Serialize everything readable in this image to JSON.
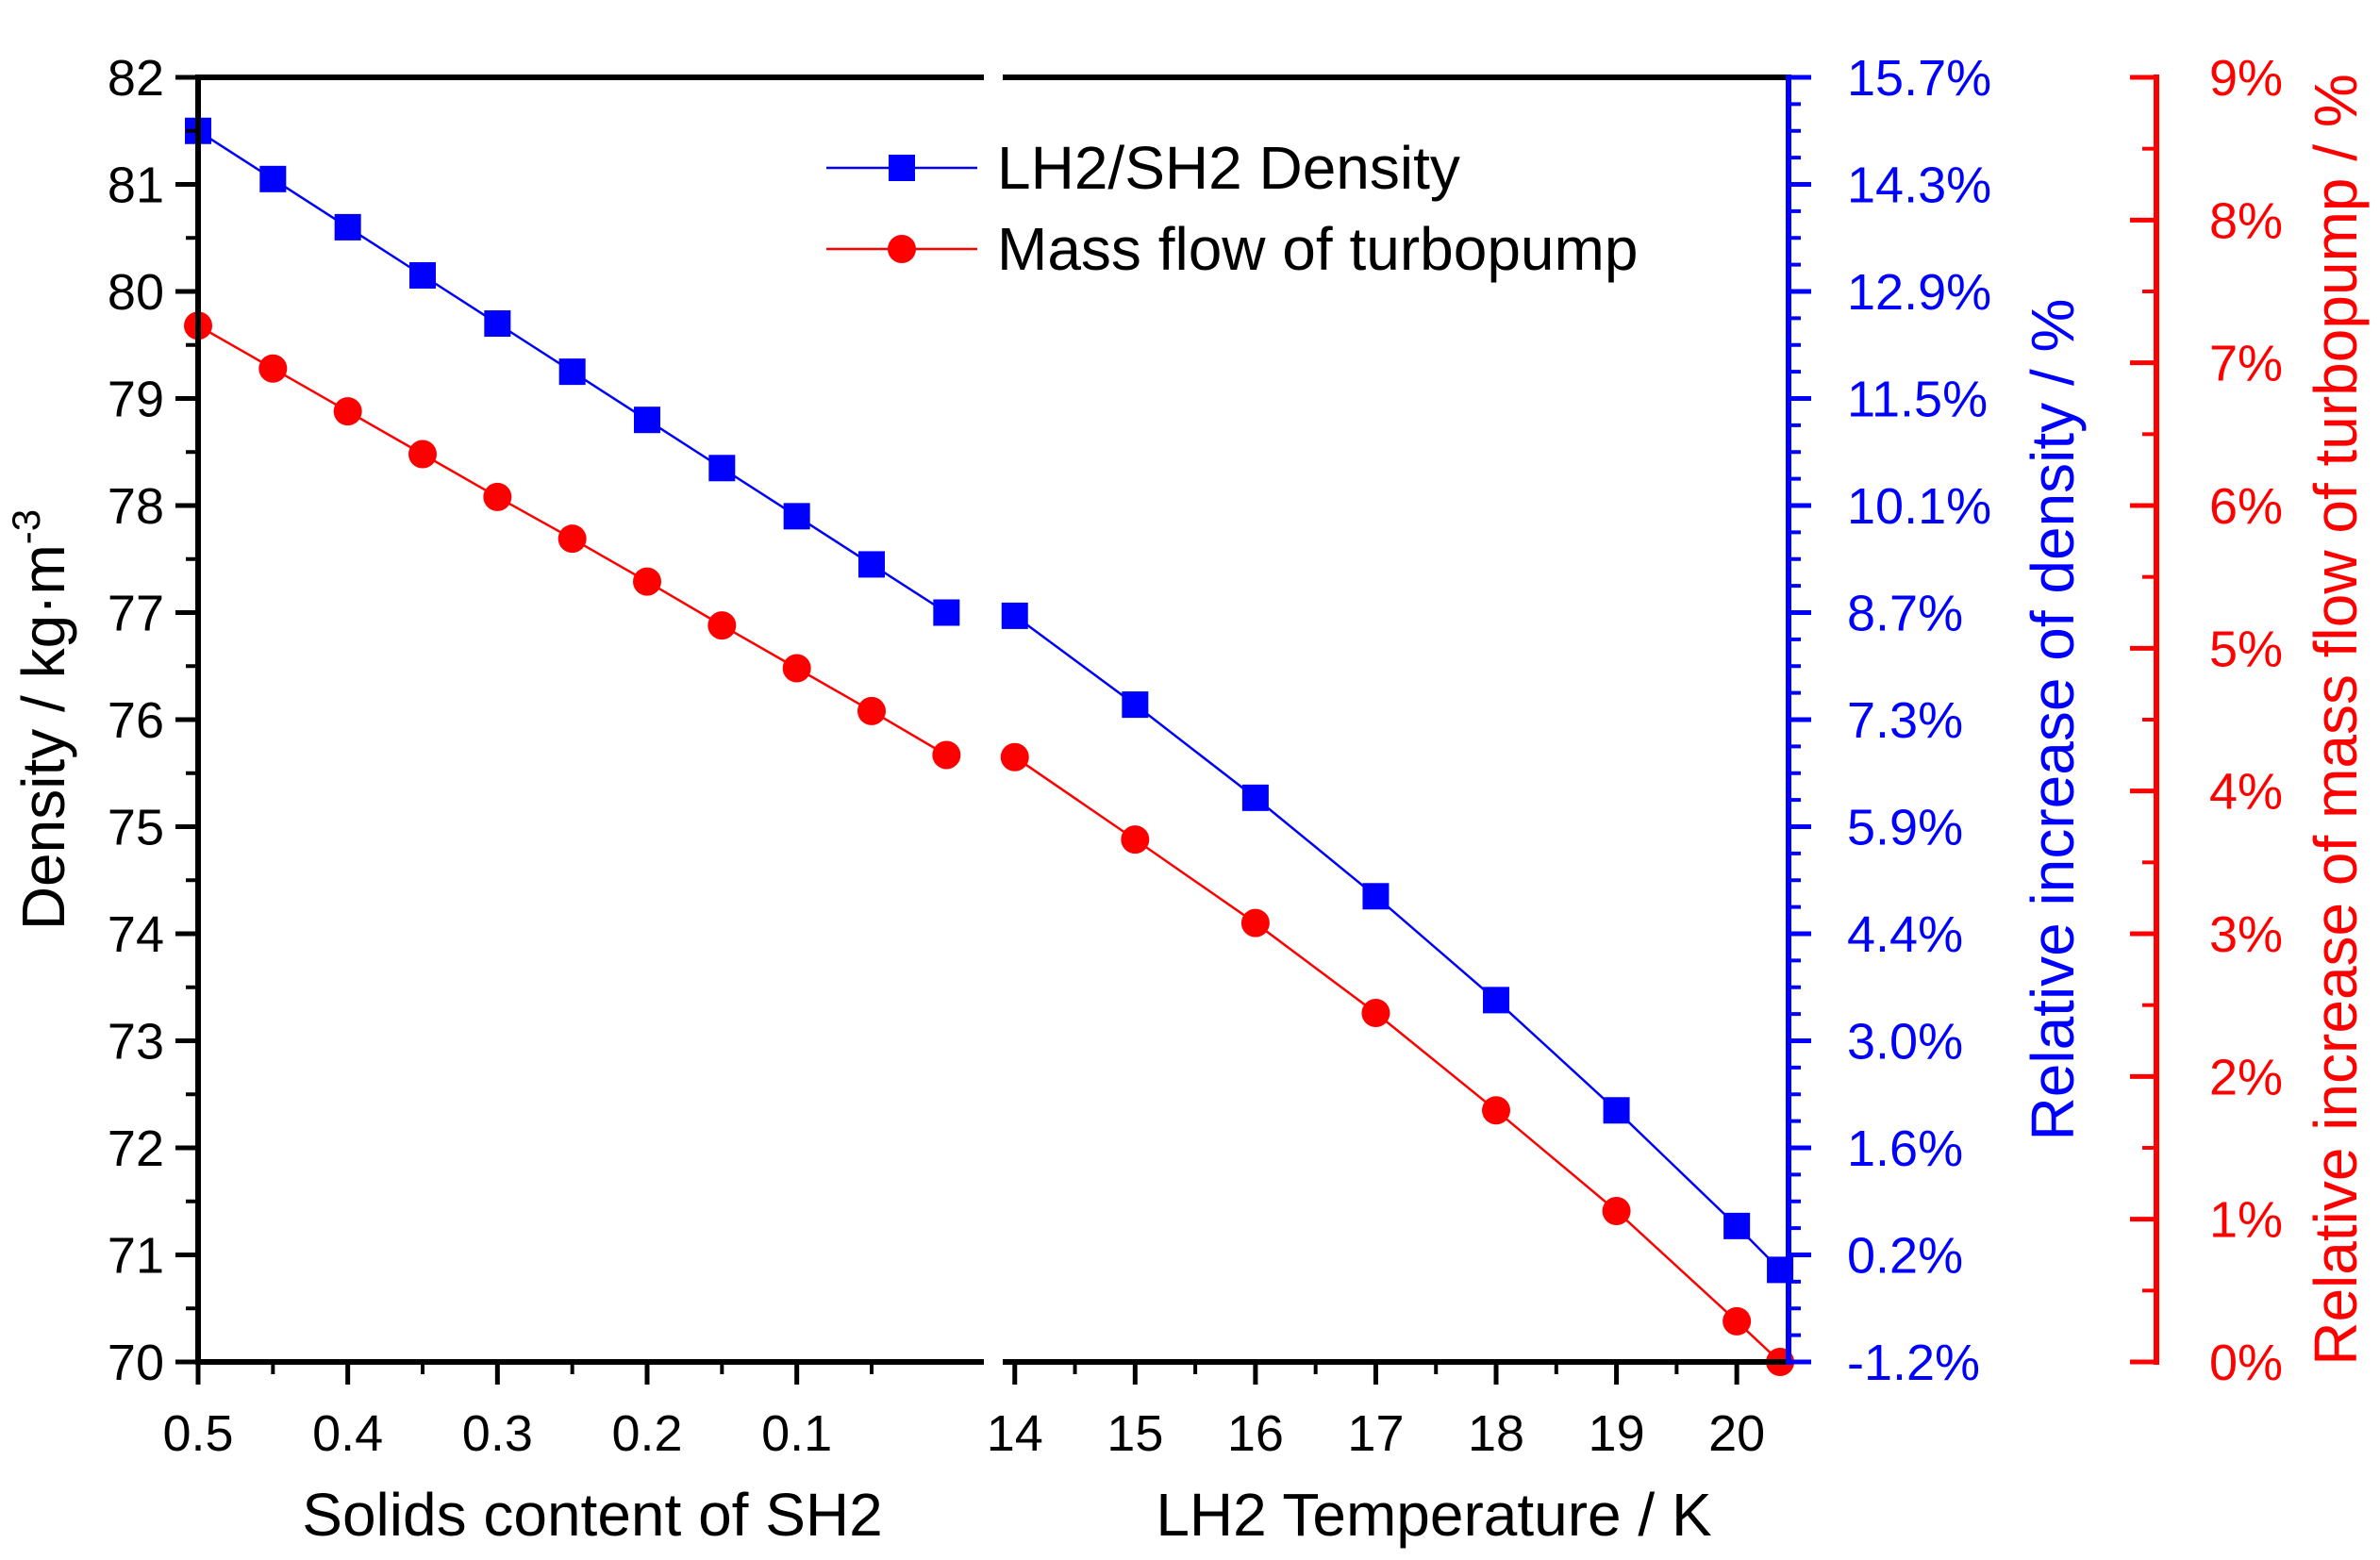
{
  "chart_data": {
    "type": "line",
    "panels": [
      {
        "name": "solids",
        "xlabel": "Solids content of SH2",
        "xlim": [
          0.5,
          -0.025
        ],
        "ticks": [
          "0.5",
          "0.4",
          "0.3",
          "0.2",
          "0.1"
        ],
        "tick_values": [
          0.5,
          0.4,
          0.3,
          0.2,
          0.1
        ],
        "minor_tick_values": [
          0.45,
          0.35,
          0.25,
          0.15,
          0.05
        ]
      },
      {
        "name": "temperature",
        "xlabel": "LH2 Temperature / K",
        "xlim": [
          13.9,
          20.43
        ],
        "ticks": [
          "14",
          "15",
          "16",
          "17",
          "18",
          "19",
          "20"
        ],
        "tick_values": [
          14,
          15,
          16,
          17,
          18,
          19,
          20
        ],
        "minor_tick_values": [
          14.5,
          15.5,
          16.5,
          17.5,
          18.5,
          19.5
        ]
      }
    ],
    "y_left": {
      "label": "Density / kg·m",
      "label_sup": "-3",
      "ylim": [
        70,
        82
      ],
      "ticks": [
        "70",
        "71",
        "72",
        "73",
        "74",
        "75",
        "76",
        "77",
        "78",
        "79",
        "80",
        "81",
        "82"
      ]
    },
    "y_right_blue": {
      "label": "Relative increase of density / %",
      "color": "#0000ff",
      "ticks": [
        "-1.2%",
        "0.2%",
        "1.6%",
        "3.0%",
        "4.4%",
        "5.9%",
        "7.3%",
        "8.7%",
        "10.1%",
        "11.5%",
        "12.9%",
        "14.3%",
        "15.7%"
      ]
    },
    "y_right_red": {
      "label": "Relative increase of mass flow of turbopump / %",
      "color": "#ff0000",
      "ylim": [
        0,
        9
      ],
      "ticks": [
        "0%",
        "1%",
        "2%",
        "3%",
        "4%",
        "5%",
        "6%",
        "7%",
        "8%",
        "9%"
      ]
    },
    "series": [
      {
        "name": "LH2/SH2 Density",
        "color": "#0000ff",
        "marker": "square",
        "panel1": {
          "x": [
            0.5,
            0.45,
            0.4,
            0.35,
            0.3,
            0.25,
            0.2,
            0.15,
            0.1,
            0.05,
            0.0
          ],
          "y": [
            81.5,
            81.05,
            80.6,
            80.15,
            79.7,
            79.25,
            78.8,
            78.35,
            77.9,
            77.45,
            77.0
          ]
        },
        "panel2": {
          "x": [
            14,
            15,
            16,
            17,
            18,
            19,
            20,
            20.36
          ],
          "y": [
            76.97,
            76.14,
            75.27,
            74.35,
            73.38,
            72.35,
            71.27,
            70.86
          ]
        }
      },
      {
        "name": "Mass flow of turbopump",
        "color": "#ff0000",
        "marker": "circle",
        "panel1": {
          "x": [
            0.5,
            0.45,
            0.4,
            0.35,
            0.3,
            0.25,
            0.2,
            0.15,
            0.1,
            0.05,
            0.0
          ],
          "y": [
            79.68,
            79.28,
            78.88,
            78.48,
            78.08,
            77.69,
            77.29,
            76.88,
            76.48,
            76.08,
            75.67
          ]
        },
        "panel2": {
          "x": [
            14,
            15,
            16,
            17,
            18,
            19,
            20,
            20.36
          ],
          "y": [
            75.65,
            74.88,
            74.1,
            73.26,
            72.35,
            71.41,
            70.38,
            70.0
          ]
        }
      }
    ]
  }
}
